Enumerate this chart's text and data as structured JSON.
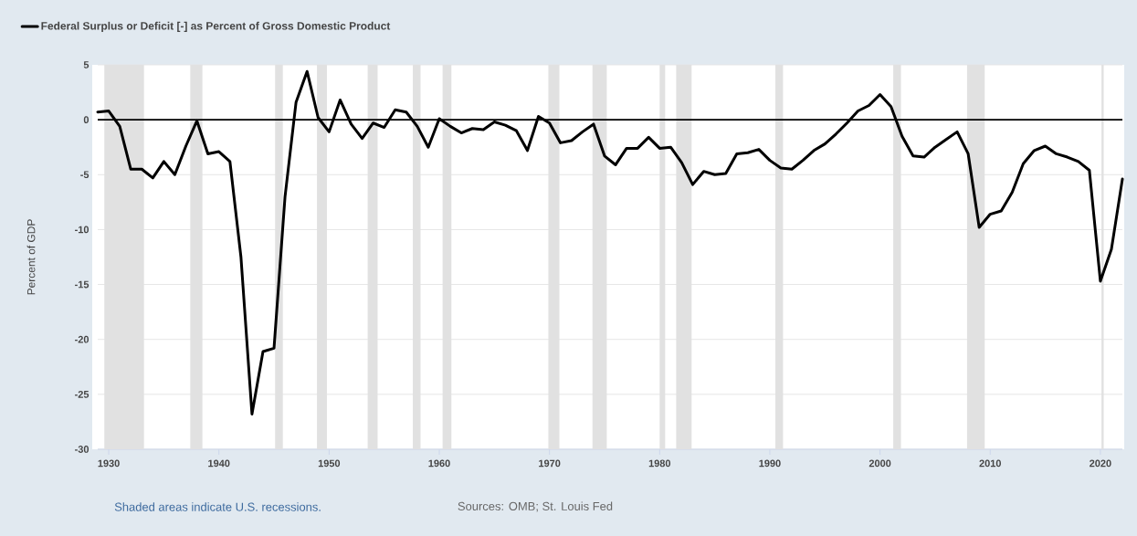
{
  "chart_data": {
    "type": "line",
    "ylabel": "Percent of GDP",
    "annotations": [
      "Shaded areas indicate U.S. recessions.",
      "Sources: OMB; St. Louis Fed"
    ],
    "x": [
      1929,
      1930,
      1931,
      1932,
      1933,
      1934,
      1935,
      1936,
      1937,
      1938,
      1939,
      1940,
      1941,
      1942,
      1943,
      1944,
      1945,
      1946,
      1947,
      1948,
      1949,
      1950,
      1951,
      1952,
      1953,
      1954,
      1955,
      1956,
      1957,
      1958,
      1959,
      1960,
      1961,
      1962,
      1963,
      1964,
      1965,
      1966,
      1967,
      1968,
      1969,
      1970,
      1971,
      1972,
      1973,
      1974,
      1975,
      1976,
      1977,
      1978,
      1979,
      1980,
      1981,
      1982,
      1983,
      1984,
      1985,
      1986,
      1987,
      1988,
      1989,
      1990,
      1991,
      1992,
      1993,
      1994,
      1995,
      1996,
      1997,
      1998,
      1999,
      2000,
      2001,
      2002,
      2003,
      2004,
      2005,
      2006,
      2007,
      2008,
      2009,
      2010,
      2011,
      2012,
      2013,
      2014,
      2015,
      2016,
      2017,
      2018,
      2019,
      2020,
      2021,
      2022
    ],
    "series": [
      {
        "name": "Federal Surplus or Deficit [-] as Percent of Gross Domestic Product",
        "color": "#000000",
        "values": [
          0.7,
          0.8,
          -0.6,
          -4.5,
          -4.5,
          -5.3,
          -3.8,
          -5.0,
          -2.4,
          -0.1,
          -3.1,
          -2.9,
          -3.8,
          -12.5,
          -26.8,
          -21.1,
          -20.8,
          -7.0,
          1.6,
          4.4,
          0.2,
          -1.1,
          1.8,
          -0.4,
          -1.7,
          -0.3,
          -0.7,
          0.9,
          0.7,
          -0.6,
          -2.5,
          0.1,
          -0.6,
          -1.2,
          -0.8,
          -0.9,
          -0.2,
          -0.5,
          -1.0,
          -2.8,
          0.3,
          -0.3,
          -2.1,
          -1.9,
          -1.1,
          -0.4,
          -3.3,
          -4.1,
          -2.6,
          -2.6,
          -1.6,
          -2.6,
          -2.5,
          -3.9,
          -5.9,
          -4.7,
          -5.0,
          -4.9,
          -3.1,
          -3.0,
          -2.7,
          -3.7,
          -4.4,
          -4.5,
          -3.7,
          -2.8,
          -2.2,
          -1.3,
          -0.3,
          0.8,
          1.3,
          2.3,
          1.2,
          -1.5,
          -3.3,
          -3.4,
          -2.5,
          -1.8,
          -1.1,
          -3.1,
          -9.8,
          -8.6,
          -8.3,
          -6.6,
          -4.0,
          -2.8,
          -2.4,
          -3.1,
          -3.4,
          -3.8,
          -4.6,
          -14.7,
          -11.8,
          -5.4
        ]
      }
    ],
    "xlim": [
      1929,
      2022
    ],
    "ylim": [
      -30,
      5
    ],
    "xticks": [
      1930,
      1940,
      1950,
      1960,
      1970,
      1980,
      1990,
      2000,
      2010,
      2020
    ],
    "yticks": [
      -30,
      -25,
      -20,
      -15,
      -10,
      -5,
      0,
      5
    ],
    "ref_lines": [
      {
        "axis": "y",
        "value": 0,
        "color": "#000000"
      }
    ],
    "bands": [
      {
        "axis": "x",
        "from": 1929.6,
        "to": 1933.2,
        "color": "#e1e1e1"
      },
      {
        "axis": "x",
        "from": 1937.4,
        "to": 1938.5,
        "color": "#e1e1e1"
      },
      {
        "axis": "x",
        "from": 1945.1,
        "to": 1945.8,
        "color": "#e1e1e1"
      },
      {
        "axis": "x",
        "from": 1948.9,
        "to": 1949.8,
        "color": "#e1e1e1"
      },
      {
        "axis": "x",
        "from": 1953.5,
        "to": 1954.4,
        "color": "#e1e1e1"
      },
      {
        "axis": "x",
        "from": 1957.6,
        "to": 1958.3,
        "color": "#e1e1e1"
      },
      {
        "axis": "x",
        "from": 1960.3,
        "to": 1961.1,
        "color": "#e1e1e1"
      },
      {
        "axis": "x",
        "from": 1969.9,
        "to": 1970.9,
        "color": "#e1e1e1"
      },
      {
        "axis": "x",
        "from": 1973.9,
        "to": 1975.2,
        "color": "#e1e1e1"
      },
      {
        "axis": "x",
        "from": 1980.0,
        "to": 1980.5,
        "color": "#e1e1e1"
      },
      {
        "axis": "x",
        "from": 1981.5,
        "to": 1982.9,
        "color": "#e1e1e1"
      },
      {
        "axis": "x",
        "from": 1990.5,
        "to": 1991.2,
        "color": "#e1e1e1"
      },
      {
        "axis": "x",
        "from": 2001.2,
        "to": 2001.9,
        "color": "#e1e1e1"
      },
      {
        "axis": "x",
        "from": 2007.9,
        "to": 2009.5,
        "color": "#e1e1e1"
      },
      {
        "axis": "x",
        "from": 2020.1,
        "to": 2020.3,
        "color": "#e1e1e1"
      }
    ],
    "grid": "y",
    "legend": "top left",
    "marker": "none",
    "line_style": "solid"
  }
}
